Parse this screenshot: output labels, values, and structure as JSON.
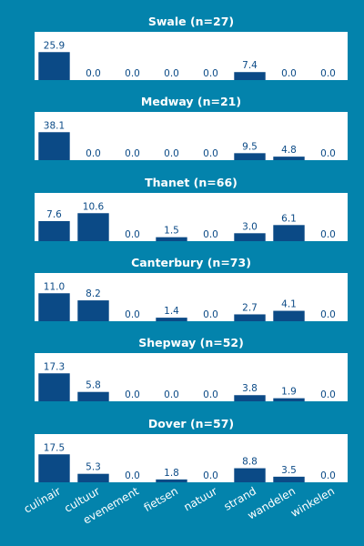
{
  "chart_data": {
    "type": "bar",
    "categories": [
      "culinair",
      "cultuur",
      "evenement",
      "fietsen",
      "natuur",
      "strand",
      "wandelen",
      "winkelen"
    ],
    "colors": {
      "background": "#0383ac",
      "panel": "#ffffff",
      "bar": "#0b4a86",
      "label": "#0b4a86",
      "title": "#ffffff"
    },
    "grid": false,
    "panels": [
      {
        "title": "Swale (n=27)",
        "values": [
          25.9,
          0.0,
          0.0,
          0.0,
          0.0,
          7.4,
          0.0,
          0.0
        ],
        "labels": [
          "25.9",
          "0.0",
          "0.0",
          "0.0",
          "0.0",
          "7.4",
          "0.0",
          "0.0"
        ]
      },
      {
        "title": "Medway (n=21)",
        "values": [
          38.1,
          0.0,
          0.0,
          0.0,
          0.0,
          9.5,
          4.8,
          0.0
        ],
        "labels": [
          "38.1",
          "0.0",
          "0.0",
          "0.0",
          "0.0",
          "9.5",
          "4.8",
          "0.0"
        ]
      },
      {
        "title": "Thanet (n=66)",
        "values": [
          7.6,
          10.6,
          0.0,
          1.5,
          0.0,
          3.0,
          6.1,
          0.0
        ],
        "labels": [
          "7.6",
          "10.6",
          "0.0",
          "1.5",
          "0.0",
          "3.0",
          "6.1",
          "0.0"
        ]
      },
      {
        "title": "Canterbury (n=73)",
        "values": [
          11.0,
          8.2,
          0.0,
          1.4,
          0.0,
          2.7,
          4.1,
          0.0
        ],
        "labels": [
          "11.0",
          "8.2",
          "0.0",
          "1.4",
          "0.0",
          "2.7",
          "4.1",
          "0.0"
        ]
      },
      {
        "title": "Shepway (n=52)",
        "values": [
          17.3,
          5.8,
          0.0,
          0.0,
          0.0,
          3.8,
          1.9,
          0.0
        ],
        "labels": [
          "17.3",
          "5.8",
          "0.0",
          "0.0",
          "0.0",
          "3.8",
          "1.9",
          "0.0"
        ]
      },
      {
        "title": "Dover (n=57)",
        "values": [
          17.5,
          5.3,
          0.0,
          1.8,
          0.0,
          8.8,
          3.5,
          0.0
        ],
        "labels": [
          "17.5",
          "5.3",
          "0.0",
          "1.8",
          "0.0",
          "8.8",
          "3.5",
          "0.0"
        ]
      }
    ]
  }
}
